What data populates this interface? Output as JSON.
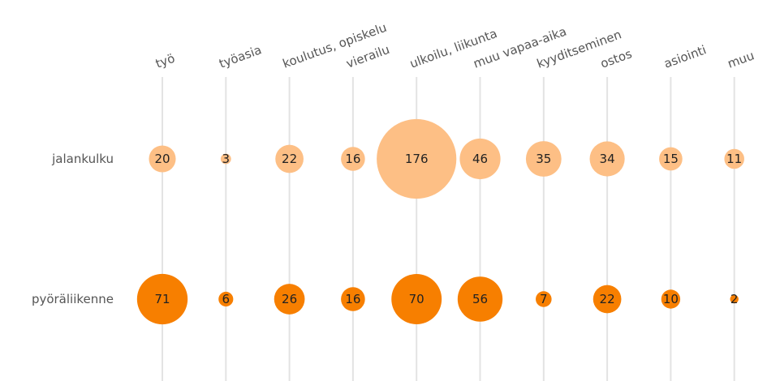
{
  "chart_data": {
    "type": "bubble",
    "categories": [
      "työ",
      "työasia",
      "koulutus, opiskelu",
      "vierailu",
      "ulkoilu, liikunta",
      "muu vapaa-aika",
      "kyyditseminen",
      "ostos",
      "asiointi",
      "muu"
    ],
    "series": [
      {
        "name": "jalankulku",
        "color": "#fdbf85",
        "values": [
          20,
          3,
          22,
          16,
          176,
          46,
          35,
          34,
          15,
          11
        ]
      },
      {
        "name": "pyöräliikenne",
        "color": "#f77f00",
        "values": [
          71,
          6,
          26,
          16,
          70,
          56,
          7,
          22,
          10,
          2
        ]
      }
    ],
    "grid": true
  }
}
